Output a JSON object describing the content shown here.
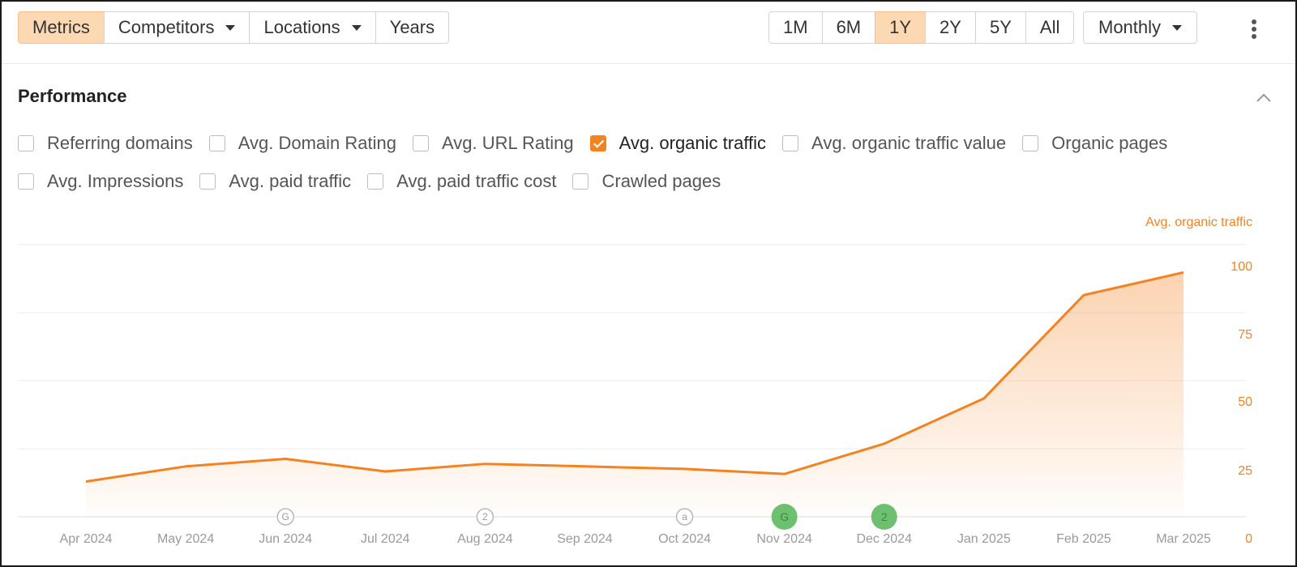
{
  "toolbar": {
    "left_tabs": [
      {
        "label": "Metrics",
        "active": true,
        "dropdown": false,
        "name": "tab-metrics"
      },
      {
        "label": "Competitors",
        "active": false,
        "dropdown": true,
        "name": "tab-competitors"
      },
      {
        "label": "Locations",
        "active": false,
        "dropdown": true,
        "name": "tab-locations"
      },
      {
        "label": "Years",
        "active": false,
        "dropdown": false,
        "name": "tab-years"
      }
    ],
    "ranges": [
      {
        "label": "1M",
        "active": false
      },
      {
        "label": "6M",
        "active": false
      },
      {
        "label": "1Y",
        "active": true
      },
      {
        "label": "2Y",
        "active": false
      },
      {
        "label": "5Y",
        "active": false
      },
      {
        "label": "All",
        "active": false
      }
    ],
    "granularity": "Monthly",
    "more_icon": "kebab-menu-icon"
  },
  "section": {
    "title": "Performance",
    "collapse_icon": "chevron-up-icon"
  },
  "metrics_row1": [
    {
      "label": "Referring domains",
      "checked": false
    },
    {
      "label": "Avg. Domain Rating",
      "checked": false
    },
    {
      "label": "Avg. URL Rating",
      "checked": false
    },
    {
      "label": "Avg. organic traffic",
      "checked": true
    },
    {
      "label": "Avg. organic traffic value",
      "checked": false
    },
    {
      "label": "Organic pages",
      "checked": false
    }
  ],
  "metrics_row2": [
    {
      "label": "Avg. Impressions",
      "checked": false
    },
    {
      "label": "Avg. paid traffic",
      "checked": false
    },
    {
      "label": "Avg. paid traffic cost",
      "checked": false
    },
    {
      "label": "Crawled pages",
      "checked": false
    }
  ],
  "colors": {
    "accent": "#f58220",
    "active_bg": "#fdd9b3",
    "grid": "#ebebeb",
    "annotation_green": "#6cc070"
  },
  "chart_data": {
    "type": "area",
    "ylabel": "Avg. organic traffic",
    "ylim": [
      0,
      100
    ],
    "yticks": [
      "0",
      "25",
      "50",
      "75",
      "100"
    ],
    "categories": [
      "Apr 2024",
      "May 2024",
      "Jun 2024",
      "Jul 2024",
      "Aug 2024",
      "Sep 2024",
      "Oct 2024",
      "Nov 2024",
      "Dec 2024",
      "Jan 2025",
      "Feb 2025",
      "Mar 2025"
    ],
    "series": [
      {
        "values": [
          14,
          20,
          23,
          18,
          21,
          20,
          19,
          17,
          29,
          47,
          88,
          97
        ]
      }
    ],
    "grid": true,
    "legend": "none",
    "annotations": [
      {
        "category": "Jun 2024",
        "label": "G",
        "filled": false
      },
      {
        "category": "Aug 2024",
        "label": "2",
        "filled": false
      },
      {
        "category": "Oct 2024",
        "label": "a",
        "filled": false
      },
      {
        "category": "Nov 2024",
        "label": "G",
        "filled": true
      },
      {
        "category": "Dec 2024",
        "label": "2",
        "filled": true
      }
    ]
  }
}
